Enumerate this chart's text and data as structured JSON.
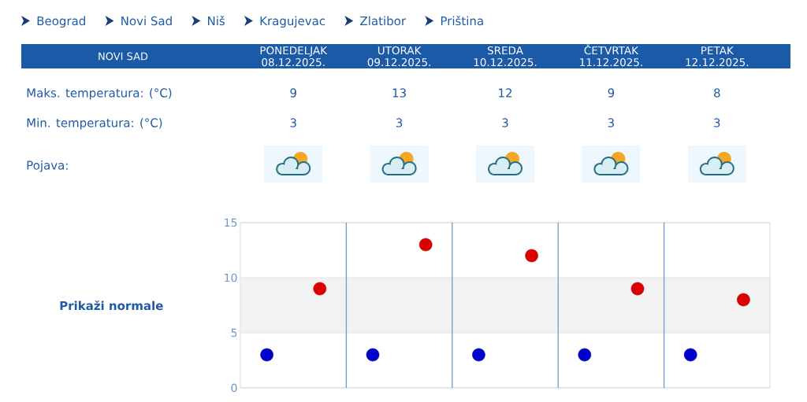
{
  "chart_data": {
    "type": "scatter",
    "title": "NOVI SAD",
    "categories": [
      null,
      null,
      null,
      null,
      null
    ],
    "series": [
      {
        "color": "#dd0000",
        "values": [
          9,
          13,
          12,
          9,
          8
        ]
      },
      {
        "color": "#0000cc",
        "values": [
          3,
          3,
          3,
          3,
          3
        ]
      }
    ],
    "ylim": [
      0,
      15
    ],
    "yticks": [
      0,
      5,
      10,
      15
    ],
    "grid": true,
    "bands": [
      {
        "axis": "y",
        "from": 5,
        "to": 10,
        "color": "#f2f2f2"
      }
    ],
    "marker": "circle",
    "data_labels": true,
    "annotations": [
      "Beograd",
      "Novi Sad",
      "Niš",
      "Kragujevac",
      "Zlatibor",
      "Priština",
      "PONEDELJAK 08.12.2025.",
      "UTORAK 09.12.2025.",
      "SREDA 10.12.2025.",
      "ČETVRTAK 11.12.2025.",
      "PETAK 12.12.2025.",
      "Maks. temperatura: (°C)",
      "Min. temperatura: (°C)",
      "Pojava:",
      "Prikaži normale"
    ]
  }
}
